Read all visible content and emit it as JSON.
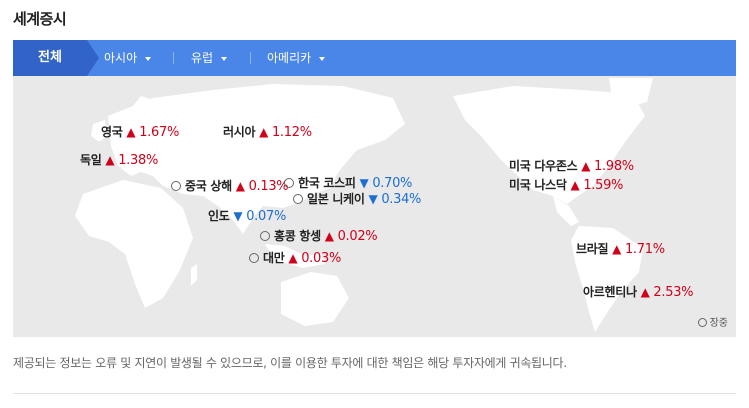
{
  "title": "세계증시",
  "tabs": [
    {
      "label": "전체"
    },
    {
      "label": "아시아"
    },
    {
      "label": "유럽"
    },
    {
      "label": "아메리카"
    }
  ],
  "indices": [
    {
      "name": "영국",
      "dir": "▲",
      "value": "1.67%",
      "clock": false
    },
    {
      "name": "러시아",
      "dir": "▲",
      "value": "1.12%",
      "clock": false
    },
    {
      "name": "독일",
      "dir": "▲",
      "value": "1.38%",
      "clock": false
    },
    {
      "name": "중국 상해",
      "dir": "▲",
      "value": "0.13%",
      "clock": true
    },
    {
      "name": "한국 코스피",
      "dir": "▼",
      "value": "0.70%",
      "clock": true
    },
    {
      "name": "일본 니케이",
      "dir": "▼",
      "value": "0.34%",
      "clock": true
    },
    {
      "name": "인도",
      "dir": "▼",
      "value": "0.07%",
      "clock": false
    },
    {
      "name": "홍콩 항셍",
      "dir": "▲",
      "value": "0.02%",
      "clock": true
    },
    {
      "name": "대만",
      "dir": "▲",
      "value": "0.03%",
      "clock": true
    },
    {
      "name": "미국 다우존스",
      "dir": "▲",
      "value": "1.98%",
      "clock": false
    },
    {
      "name": "미국 나스닥",
      "dir": "▲",
      "value": "1.59%",
      "clock": false
    },
    {
      "name": "브라질",
      "dir": "▲",
      "value": "1.71%",
      "clock": false
    },
    {
      "name": "아르헨티나",
      "dir": "▲",
      "value": "2.53%",
      "clock": false
    }
  ],
  "legend": "장중",
  "notice": "제공되는 정보는 오류 및 지연이 발생될 수 있으므로, 이를 이용한 투자에 대한 책임은 해당 투자자에게 귀속됩니다.",
  "colors": {
    "tab_bar": "#4a86e8",
    "tab_active": "#3264c8",
    "up": "#d0021b",
    "down": "#1c6fd1",
    "map_bg": "#e9e9e9",
    "land": "#ffffff"
  }
}
